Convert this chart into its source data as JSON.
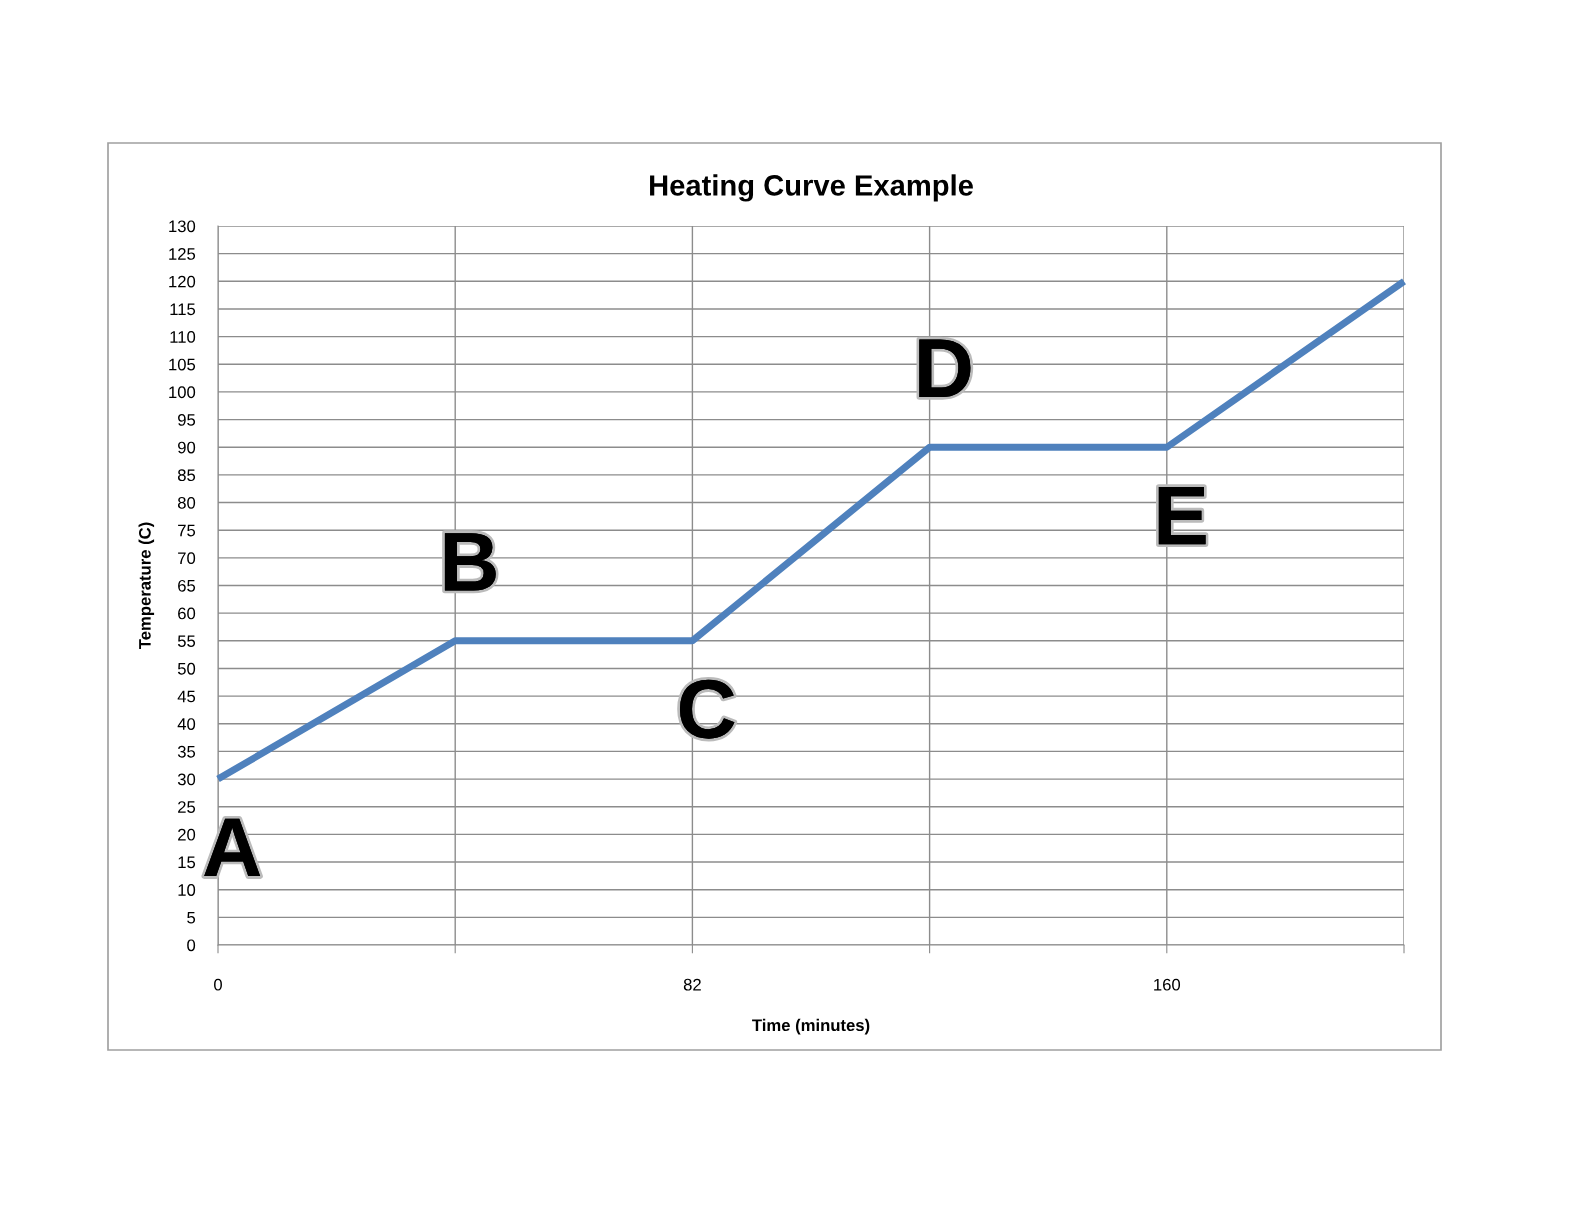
{
  "chart_data": {
    "type": "line",
    "title": "Heating Curve Example",
    "xlabel": "Time (minutes)",
    "ylabel": "Temperature (C)",
    "categories": [
      "0",
      null,
      "82",
      null,
      "160",
      null
    ],
    "series": [
      {
        "color": "#4f81bd",
        "values": [
          30,
          55,
          55,
          90,
          90,
          120
        ]
      }
    ],
    "ylim": [
      0,
      130
    ],
    "yticks": [
      0,
      5,
      10,
      15,
      20,
      25,
      30,
      35,
      40,
      45,
      50,
      55,
      60,
      65,
      70,
      75,
      80,
      85,
      90,
      95,
      100,
      105,
      110,
      115,
      120,
      125,
      130
    ],
    "grid": true,
    "legend": false,
    "marker": "none",
    "line_style": "solid",
    "annotations": [
      "A",
      "B",
      "C",
      "D",
      "E"
    ]
  }
}
